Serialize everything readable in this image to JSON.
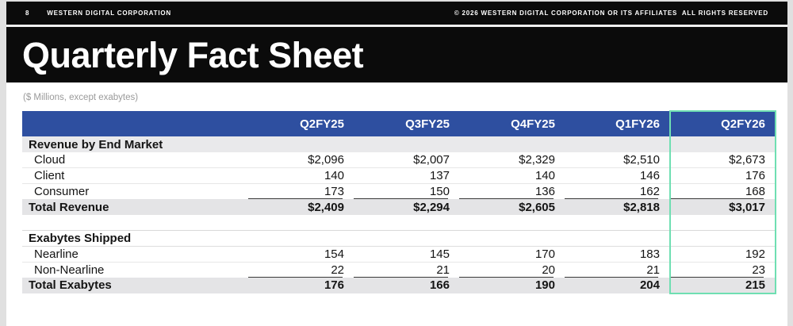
{
  "topbar": {
    "page_number": "8",
    "company": "WESTERN DIGITAL CORPORATION",
    "copyright": "© 2026 WESTERN DIGITAL CORPORATION OR ITS AFFILIATES  ALL RIGHTS RESERVED"
  },
  "title": "Quarterly Fact Sheet",
  "units_note": "($ Millions, except exabytes)",
  "table": {
    "columns": [
      "",
      "Q2FY25",
      "Q3FY25",
      "Q4FY25",
      "Q1FY26",
      "Q2FY26"
    ],
    "highlighted_column": "Q2FY26",
    "rows": [
      {
        "type": "section",
        "label": "Revenue by End Market",
        "values": [
          "",
          "",
          "",
          "",
          ""
        ]
      },
      {
        "type": "data",
        "label": "Cloud",
        "values": [
          "$2,096",
          "$2,007",
          "$2,329",
          "$2,510",
          "$2,673"
        ]
      },
      {
        "type": "data",
        "label": "Client",
        "values": [
          "140",
          "137",
          "140",
          "146",
          "176"
        ]
      },
      {
        "type": "data-underline",
        "label": "Consumer",
        "values": [
          "173",
          "150",
          "136",
          "162",
          "168"
        ]
      },
      {
        "type": "total",
        "label": "Total Revenue",
        "values": [
          "$2,409",
          "$2,294",
          "$2,605",
          "$2,818",
          "$3,017"
        ]
      },
      {
        "type": "spacer",
        "label": "",
        "values": [
          "",
          "",
          "",
          "",
          ""
        ]
      },
      {
        "type": "section",
        "label": "Exabytes Shipped",
        "values": [
          "",
          "",
          "",
          "",
          ""
        ]
      },
      {
        "type": "data",
        "label": "Nearline",
        "values": [
          "154",
          "145",
          "170",
          "183",
          "192"
        ]
      },
      {
        "type": "data-underline",
        "label": "Non-Nearline",
        "values": [
          "22",
          "21",
          "20",
          "21",
          "23"
        ]
      },
      {
        "type": "total",
        "label": "Total Exabytes",
        "values": [
          "176",
          "166",
          "190",
          "204",
          "215"
        ]
      }
    ]
  },
  "colors": {
    "header-blue": "#2e4fa0",
    "highlight-teal": "#6fdfb2",
    "banner-black": "#0b0b0b",
    "total-row-gray": "#e4e4e6"
  }
}
